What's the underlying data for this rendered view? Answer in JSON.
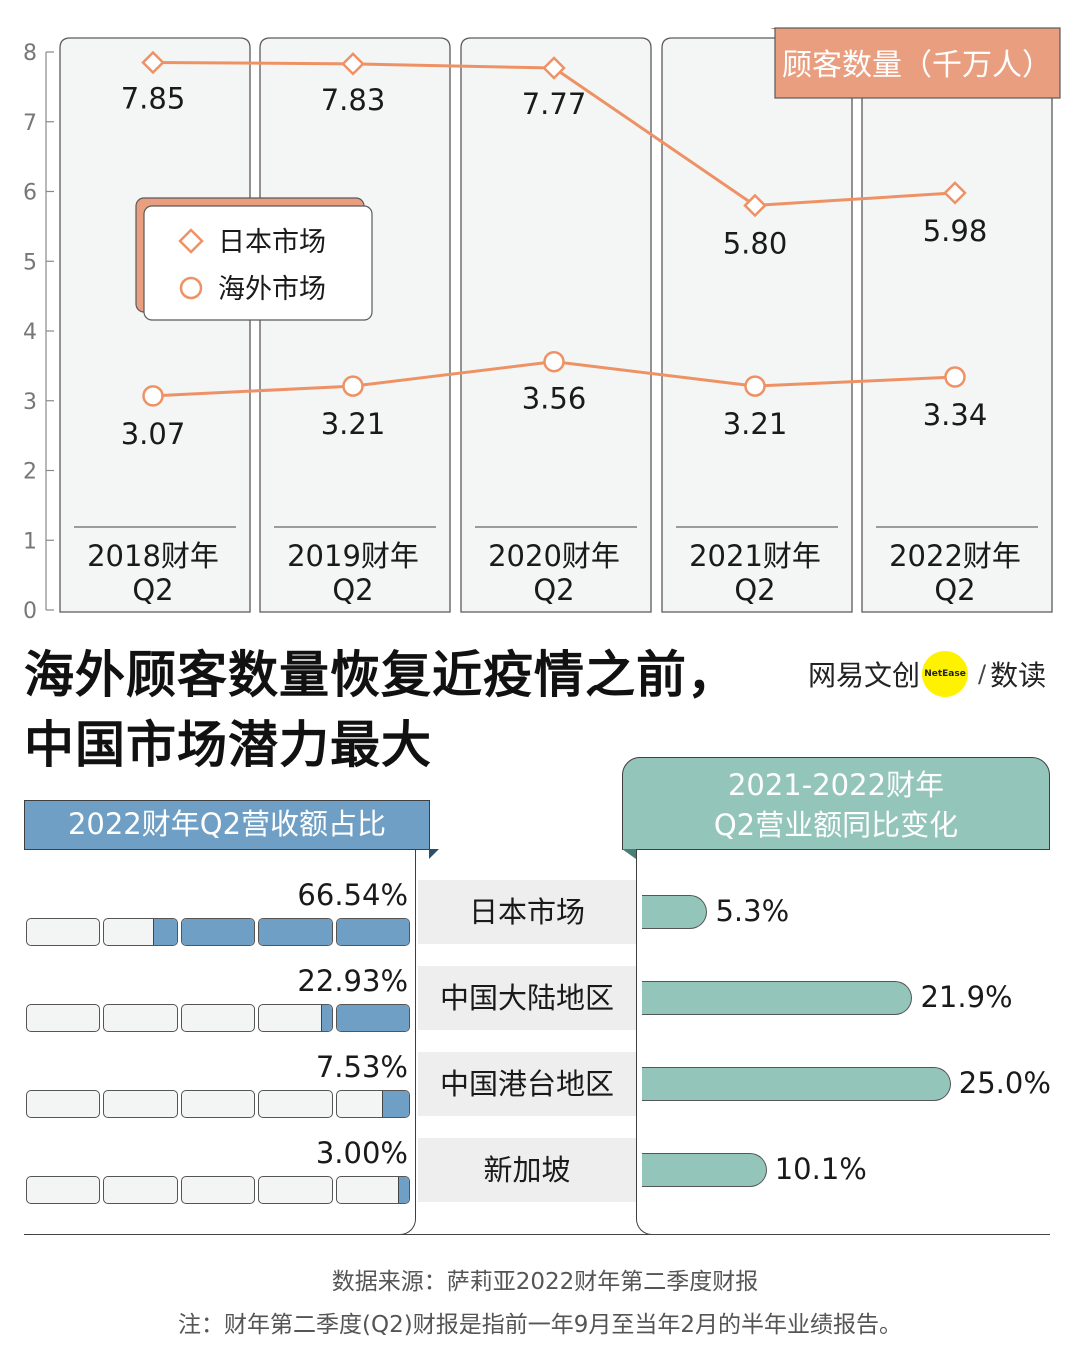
{
  "chart_data": [
    {
      "type": "line",
      "title": "顾客数量（千万人）",
      "categories": [
        [
          "2018财年",
          "Q2"
        ],
        [
          "2019财年",
          "Q2"
        ],
        [
          "2020财年",
          "Q2"
        ],
        [
          "2021财年",
          "Q2"
        ],
        [
          "2022财年",
          "Q2"
        ]
      ],
      "ylim": [
        0,
        8
      ],
      "yticks": [
        "0",
        "1",
        "2",
        "3",
        "4",
        "5",
        "6",
        "7",
        "8"
      ],
      "series": [
        {
          "name": "日本市场",
          "marker": "diamond",
          "values": [
            7.85,
            7.83,
            7.77,
            5.8,
            5.98
          ],
          "labels": [
            "7.85",
            "7.83",
            "7.77",
            "5.80",
            "5.98"
          ]
        },
        {
          "name": "海外市场",
          "marker": "circle",
          "values": [
            3.07,
            3.21,
            3.56,
            3.21,
            3.34
          ],
          "labels": [
            "3.07",
            "3.21",
            "3.56",
            "3.21",
            "3.34"
          ]
        }
      ],
      "colors": {
        "line": "#ee9266",
        "title_bg": "#e99e7f",
        "panel": "#f3f6f4"
      }
    },
    {
      "type": "bar",
      "title": "2022财年Q2营收额占比",
      "categories": [
        "日本市场",
        "中国大陆地区",
        "中国港台地区",
        "新加坡"
      ],
      "values": [
        66.54,
        22.93,
        7.53,
        3.0
      ],
      "labels": [
        "66.54%",
        "22.93%",
        "7.53%",
        "3.00%"
      ],
      "unit": "%",
      "color": "#6f9fc4"
    },
    {
      "type": "bar",
      "title": "2021-2022财年 Q2营业额同比变化",
      "title_lines": [
        "2021-2022财年",
        "Q2营业额同比变化"
      ],
      "categories": [
        "日本市场",
        "中国大陆地区",
        "中国港台地区",
        "新加坡"
      ],
      "values": [
        5.3,
        21.9,
        25.0,
        10.1
      ],
      "labels": [
        "5.3%",
        "21.9%",
        "25.0%",
        "10.1%"
      ],
      "unit": "%",
      "color": "#94c5bb"
    }
  ],
  "headline": {
    "line1": "海外顾客数量恢复近疫情之前，",
    "line2": "中国市场潜力最大"
  },
  "brand": {
    "name": "网易文创",
    "badge": "NetEase",
    "sep": "/",
    "sub": "数读"
  },
  "footer": {
    "source": "数据来源：萨莉亚2022财年第二季度财报",
    "note": "注：财年第二季度(Q2)财报是指前一年9月至当年2月的半年业绩报告。"
  }
}
